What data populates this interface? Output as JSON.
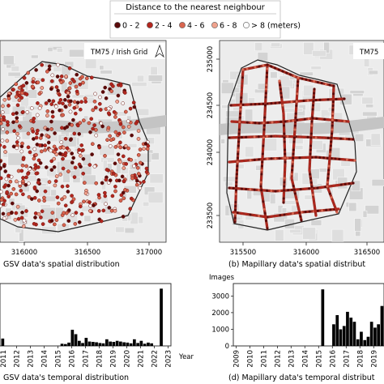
{
  "legend": {
    "title": "Distance to the nearest neighbour",
    "items": [
      {
        "label": "0 - 2",
        "color": "#5a0a0a"
      },
      {
        "label": "2 - 4",
        "color": "#b3261e"
      },
      {
        "label": "4 - 6",
        "color": "#d9654f"
      },
      {
        "label": "6 - 8",
        "color": "#f0a28d"
      },
      {
        "label": "> 8 (meters)",
        "color": "#ffffff"
      }
    ]
  },
  "map_a": {
    "crs_label": "TM75 / Irish Grid",
    "x_ticks": [
      "316000",
      "316500",
      "317000"
    ],
    "caption": "GSV data's spatial distribution"
  },
  "map_b": {
    "crs_label": "TM75",
    "x_ticks": [
      "315500",
      "316000",
      "316500"
    ],
    "y_ticks": [
      "235000",
      "234500",
      "234000",
      "233500"
    ],
    "caption": "(b) Mapillary data's spatial distribut"
  },
  "chart_data": [
    {
      "type": "bar",
      "title": "",
      "xlabel": "Year",
      "ylabel": "",
      "caption": "GSV data's temporal distribution",
      "tick_labels": [
        "2012",
        "2013",
        "2014",
        "2015",
        "2016",
        "2017",
        "2018",
        "2019",
        "2020",
        "2021",
        "2022",
        "2023"
      ],
      "partial_tick_label": "2011",
      "x": [
        2011.0,
        2015.3,
        2015.55,
        2015.8,
        2016.05,
        2016.3,
        2016.55,
        2016.8,
        2017.05,
        2017.3,
        2017.55,
        2017.8,
        2018.05,
        2018.3,
        2018.55,
        2018.8,
        2019.05,
        2019.3,
        2019.55,
        2019.8,
        2020.05,
        2020.3,
        2020.55,
        2020.8,
        2021.05,
        2021.3,
        2021.55,
        2021.8,
        2022.5
      ],
      "values": [
        100,
        30,
        25,
        45,
        220,
        160,
        70,
        40,
        110,
        60,
        55,
        50,
        40,
        35,
        90,
        60,
        55,
        70,
        60,
        50,
        45,
        35,
        90,
        40,
        70,
        30,
        45,
        35,
        780
      ],
      "ylim": [
        0,
        850
      ],
      "xlim": [
        2010.8,
        2023.2
      ]
    },
    {
      "type": "bar",
      "title": "",
      "xlabel": "",
      "ylabel": "Images",
      "caption": "(d) Mapillary data's temporal distribut",
      "yticks": [
        "0",
        "1000",
        "2000",
        "3000"
      ],
      "tick_labels": [
        "2009",
        "2010",
        "2011",
        "2012",
        "2013",
        "2014",
        "2015",
        "2016",
        "2017",
        "2018",
        "2019"
      ],
      "x": [
        2015.3,
        2016.1,
        2016.35,
        2016.6,
        2016.85,
        2017.1,
        2017.35,
        2017.6,
        2017.85,
        2018.1,
        2018.35,
        2018.6,
        2018.85,
        2019.1,
        2019.35,
        2019.6
      ],
      "values": [
        3400,
        1300,
        1850,
        1000,
        1200,
        2050,
        1700,
        1450,
        400,
        850,
        350,
        550,
        1450,
        1100,
        1300,
        2400
      ],
      "ylim": [
        0,
        3750
      ],
      "xlim": [
        2008.8,
        2019.75
      ]
    }
  ]
}
